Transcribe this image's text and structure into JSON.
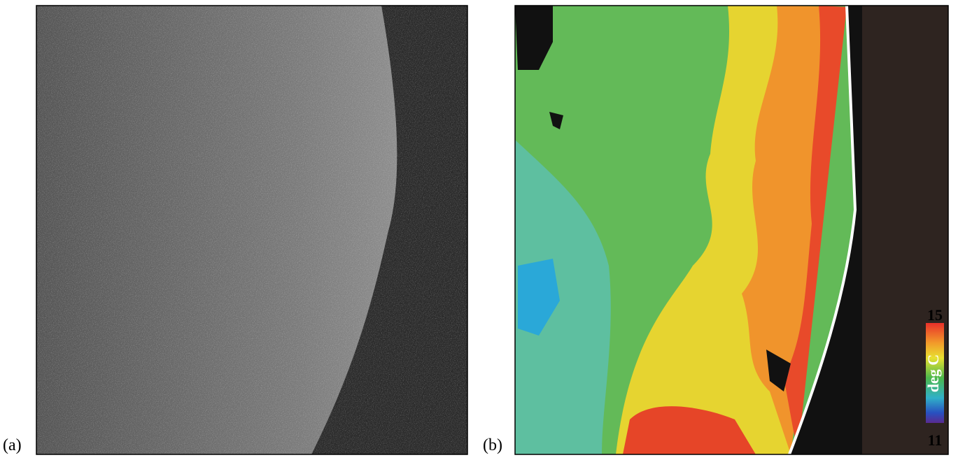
{
  "panels": [
    {
      "label": "(a)"
    },
    {
      "label": "(b)"
    }
  ],
  "colorbar": {
    "max": 15,
    "min": 11,
    "label": "deg C"
  }
}
